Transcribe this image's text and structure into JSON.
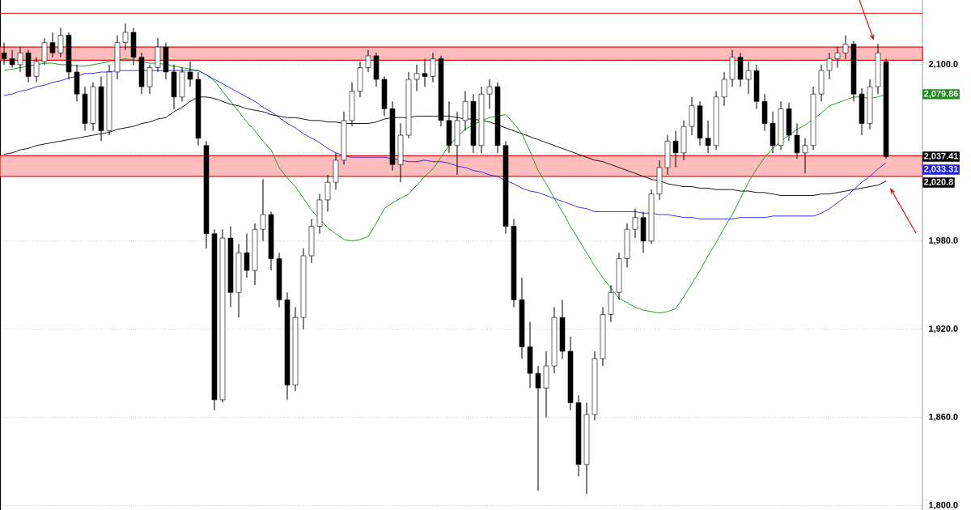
{
  "chart_data": {
    "type": "candlestick",
    "categories": [
      null,
      null,
      null,
      null,
      null,
      null,
      null,
      null,
      null,
      null,
      null,
      null,
      null,
      null,
      null,
      null,
      null,
      null,
      null,
      null,
      null,
      null,
      null,
      null,
      null,
      null,
      null,
      null,
      null,
      null,
      null,
      null,
      null,
      null,
      null,
      null,
      null,
      null,
      null,
      null,
      null,
      null,
      null,
      null,
      null,
      null,
      null,
      null,
      null,
      null,
      null,
      null,
      null,
      null,
      null,
      null,
      null,
      null,
      null,
      null,
      null,
      null,
      null,
      null,
      null,
      null,
      null,
      null,
      null,
      null,
      null,
      null,
      null,
      null,
      null,
      null,
      null,
      null,
      null,
      null,
      null,
      null,
      null,
      null,
      null,
      null,
      null,
      null,
      null,
      null,
      null,
      null,
      null,
      null,
      null,
      null,
      null,
      null,
      null,
      null,
      null,
      null,
      null,
      null,
      null,
      null,
      null,
      null,
      null,
      null
    ],
    "ohlc": [
      [
        2108,
        2115,
        2100,
        2104
      ],
      [
        2104,
        2110,
        2098,
        2100
      ],
      [
        2100,
        2112,
        2095,
        2108
      ],
      [
        2108,
        2110,
        2088,
        2092
      ],
      [
        2092,
        2105,
        2088,
        2102
      ],
      [
        2102,
        2118,
        2100,
        2115
      ],
      [
        2115,
        2122,
        2105,
        2108
      ],
      [
        2108,
        2125,
        2105,
        2120
      ],
      [
        2120,
        2122,
        2090,
        2095
      ],
      [
        2095,
        2100,
        2075,
        2080
      ],
      [
        2080,
        2085,
        2055,
        2060
      ],
      [
        2060,
        2088,
        2055,
        2085
      ],
      [
        2085,
        2092,
        2048,
        2055
      ],
      [
        2055,
        2100,
        2052,
        2095
      ],
      [
        2095,
        2120,
        2090,
        2115
      ],
      [
        2115,
        2128,
        2110,
        2122
      ],
      [
        2122,
        2125,
        2100,
        2105
      ],
      [
        2105,
        2108,
        2080,
        2085
      ],
      [
        2085,
        2100,
        2080,
        2098
      ],
      [
        2098,
        2118,
        2095,
        2112
      ],
      [
        2112,
        2115,
        2090,
        2095
      ],
      [
        2095,
        2100,
        2070,
        2078
      ],
      [
        2078,
        2098,
        2075,
        2095
      ],
      [
        2095,
        2102,
        2085,
        2090
      ],
      [
        2090,
        2095,
        2045,
        2050
      ],
      [
        2045,
        2048,
        1975,
        1985
      ],
      [
        1985,
        1988,
        1865,
        1872
      ],
      [
        1872,
        1988,
        1870,
        1982
      ],
      [
        1982,
        1990,
        1935,
        1945
      ],
      [
        1945,
        1978,
        1928,
        1972
      ],
      [
        1972,
        1985,
        1955,
        1960
      ],
      [
        1960,
        1992,
        1950,
        1988
      ],
      [
        1988,
        2022,
        1980,
        1998
      ],
      [
        1998,
        2000,
        1960,
        1968
      ],
      [
        1968,
        1972,
        1935,
        1940
      ],
      [
        1940,
        1945,
        1872,
        1882
      ],
      [
        1882,
        1935,
        1878,
        1928
      ],
      [
        1928,
        1975,
        1920,
        1970
      ],
      [
        1970,
        1995,
        1965,
        1990
      ],
      [
        1990,
        2012,
        1985,
        2008
      ],
      [
        2008,
        2025,
        2000,
        2020
      ],
      [
        2020,
        2040,
        2015,
        2035
      ],
      [
        2035,
        2068,
        2032,
        2062
      ],
      [
        2062,
        2088,
        2058,
        2082
      ],
      [
        2082,
        2102,
        2078,
        2098
      ],
      [
        2098,
        2110,
        2095,
        2106
      ],
      [
        2106,
        2108,
        2085,
        2090
      ],
      [
        2090,
        2092,
        2065,
        2070
      ],
      [
        2070,
        2075,
        2028,
        2032
      ],
      [
        2032,
        2060,
        2020,
        2052
      ],
      [
        2052,
        2095,
        2050,
        2090
      ],
      [
        2090,
        2100,
        2082,
        2094
      ],
      [
        2094,
        2104,
        2085,
        2092
      ],
      [
        2092,
        2108,
        2088,
        2104
      ],
      [
        2104,
        2106,
        2058,
        2062
      ],
      [
        2062,
        2075,
        2040,
        2045
      ],
      [
        2045,
        2068,
        2025,
        2062
      ],
      [
        2062,
        2082,
        2055,
        2075
      ],
      [
        2075,
        2080,
        2040,
        2045
      ],
      [
        2045,
        2085,
        2040,
        2080
      ],
      [
        2080,
        2090,
        2070,
        2085
      ],
      [
        2085,
        2088,
        2040,
        2045
      ],
      [
        2045,
        2048,
        1985,
        1990
      ],
      [
        1990,
        1995,
        1935,
        1940
      ],
      [
        1940,
        1955,
        1900,
        1908
      ],
      [
        1908,
        1925,
        1880,
        1890
      ],
      [
        1890,
        1895,
        1810,
        1880
      ],
      [
        1880,
        1905,
        1860,
        1895
      ],
      [
        1895,
        1935,
        1890,
        1928
      ],
      [
        1928,
        1940,
        1900,
        1905
      ],
      [
        1905,
        1915,
        1865,
        1870
      ],
      [
        1870,
        1875,
        1820,
        1828
      ],
      [
        1828,
        1870,
        1808,
        1862
      ],
      [
        1862,
        1905,
        1858,
        1900
      ],
      [
        1900,
        1935,
        1895,
        1930
      ],
      [
        1930,
        1950,
        1925,
        1945
      ],
      [
        1945,
        1972,
        1940,
        1968
      ],
      [
        1968,
        1992,
        1962,
        1988
      ],
      [
        1988,
        2002,
        1982,
        1996
      ],
      [
        1996,
        2000,
        1972,
        1980
      ],
      [
        1980,
        2015,
        1978,
        2012
      ],
      [
        2012,
        2035,
        2008,
        2030
      ],
      [
        2030,
        2052,
        2025,
        2048
      ],
      [
        2048,
        2055,
        2030,
        2040
      ],
      [
        2040,
        2062,
        2035,
        2058
      ],
      [
        2058,
        2078,
        2052,
        2072
      ],
      [
        2072,
        2075,
        2045,
        2050
      ],
      [
        2050,
        2062,
        2040,
        2045
      ],
      [
        2045,
        2082,
        2042,
        2078
      ],
      [
        2078,
        2095,
        2072,
        2090
      ],
      [
        2090,
        2110,
        2085,
        2105
      ],
      [
        2105,
        2108,
        2085,
        2090
      ],
      [
        2090,
        2102,
        2080,
        2096
      ],
      [
        2096,
        2100,
        2070,
        2075
      ],
      [
        2075,
        2080,
        2055,
        2060
      ],
      [
        2060,
        2068,
        2040,
        2045
      ],
      [
        2045,
        2075,
        2042,
        2070
      ],
      [
        2070,
        2074,
        2048,
        2052
      ],
      [
        2052,
        2060,
        2036,
        2040
      ],
      [
        2040,
        2050,
        2026,
        2045
      ],
      [
        2045,
        2085,
        2042,
        2080
      ],
      [
        2080,
        2100,
        2075,
        2096
      ],
      [
        2096,
        2108,
        2090,
        2104
      ],
      [
        2104,
        2112,
        2098,
        2108
      ],
      [
        2108,
        2120,
        2104,
        2114
      ],
      [
        2114,
        2116,
        2075,
        2080
      ],
      [
        2080,
        2084,
        2052,
        2060
      ],
      [
        2060,
        2090,
        2056,
        2085
      ],
      [
        2085,
        2114,
        2080,
        2108
      ],
      [
        2102,
        2104,
        2036,
        2037.41
      ]
    ],
    "series": [
      {
        "type": "line",
        "color": "#1a8c1a",
        "values": [
          2096,
          2097,
          2098,
          2099,
          2100,
          2101,
          2101,
          2100,
          2100,
          2099,
          2099,
          2100,
          2101,
          2102,
          2103,
          2104,
          2103,
          2102,
          2101,
          2101,
          2100,
          2099,
          2098,
          2097,
          2096,
          2093,
          2089,
          2082,
          2075,
          2068,
          2061,
          2055,
          2048,
          2042,
          2030,
          2023,
          2017,
          2009,
          2001,
          null,
          1989,
          1985,
          1981,
          1980,
          1981,
          1983,
          1992,
          2002,
          2006,
          2009,
          2012,
          2018,
          2024,
          2029,
          2037,
          2045,
          2051,
          2056,
          2059,
          2062,
          2064,
          2065,
          2066,
          2060,
          2053,
          2041,
          2028,
          2019,
          2009,
          2000,
          1990,
          1981,
          1972,
          1963,
          1955,
          1948,
          1941,
          1938,
          1935,
          1933,
          1932,
          1931,
          1932,
          1934,
          1942,
          1951,
          1960,
          1970,
          1979,
          1989,
          1998,
          2009,
          2020,
          2029,
          2037,
          2043,
          2048,
          2052,
          2056,
          2059,
          null,
          2067,
          2072,
          2074,
          2076,
          2078,
          2078,
          2077,
          2078,
          2079.86
        ]
      },
      {
        "type": "line",
        "color": "#2020e0",
        "values": [
          2079,
          2080,
          2082,
          2083,
          2085,
          2086,
          2088,
          2089,
          2091,
          2092,
          2094,
          2094,
          2095,
          2095,
          2096,
          2096,
          2096,
          2096,
          2096,
          2096,
          2096,
          2096,
          2096,
          2096,
          2096,
          2093,
          2090,
          2087,
          2084,
          2081,
          2078,
          2075,
          2071,
          2068,
          2064,
          2060,
          2057,
          2053,
          2050,
          2047,
          2043,
          2040,
          2038,
          2037,
          2037,
          2037,
          2037,
          2037,
          null,
          2035,
          2034,
          2034,
          2035,
          2034,
          2034,
          2033,
          2031,
          2030,
          2028,
          2027,
          2025,
          2024,
          2021,
          2019,
          2016,
          2014,
          2013,
          2011,
          2009,
          2007,
          2005,
          2003,
          2002,
          2000,
          2000,
          2000,
          2000,
          2000,
          2000,
          1999,
          1999,
          1998,
          1998,
          1997,
          1996,
          1996,
          1995,
          1995,
          1995,
          1995,
          1995,
          1996,
          1996,
          1996,
          1996,
          1997,
          1997,
          1997,
          1997,
          1997,
          1997,
          1999,
          2002,
          2006,
          2010,
          2015,
          2020,
          2024,
          2029,
          2033.31
        ]
      },
      {
        "type": "line",
        "color": "#000000",
        "values": [
          2039,
          2040,
          2042,
          2043,
          2045,
          2046,
          2047,
          2048,
          2049,
          2050,
          2051,
          2052,
          2053,
          2054,
          2056,
          2057,
          2058,
          2060,
          2061,
          2063,
          2064,
          2068,
          2071,
          2075,
          2078,
          2078,
          2077,
          2075,
          2073,
          2072,
          2070,
          2069,
          2068,
          2066,
          2065,
          2064,
          2064,
          2063,
          2062,
          2062,
          2061,
          2061,
          2060,
          2060,
          2060,
          2060,
          2061,
          2063,
          2064,
          2064,
          2064,
          2065,
          2065,
          2065,
          2065,
          2065,
          2064,
          2063,
          2063,
          2062,
          2061,
          2059,
          2057,
          2055,
          2053,
          2051,
          2049,
          2047,
          2045,
          2043,
          2041,
          2039,
          2037,
          2035,
          2034,
          2032,
          2030,
          2028,
          2026,
          2024,
          2022,
          2021,
          2019,
          2018,
          2017,
          2017,
          2016,
          2016,
          2015,
          2015,
          2015,
          2014,
          2014,
          2013,
          2013,
          2012,
          2011,
          2011,
          2011,
          2011,
          2011,
          2012,
          2012,
          2013,
          2014,
          2015,
          2016,
          2017,
          2018,
          2020.8
        ]
      }
    ],
    "ylim": [
      1797,
      2144
    ],
    "yticks": [
      {
        "value": 1800,
        "label": "1,800.0"
      },
      {
        "value": 1860,
        "label": "1,860.0"
      },
      {
        "value": 1920,
        "label": "1,920.0"
      },
      {
        "value": 1980,
        "label": "1,980.0"
      },
      {
        "value": 2040,
        "label": null
      },
      {
        "value": 2100,
        "label": "2,100.0"
      }
    ],
    "grid": "y",
    "tick_labels": "y",
    "ref_lines": [
      {
        "axis": "y",
        "value": 2135,
        "color": "#e01010"
      }
    ],
    "bands": [
      {
        "axis": "y",
        "from": 2103,
        "to": 2112,
        "color": "#ffbcbc"
      },
      {
        "axis": "y",
        "from": 2024,
        "to": 2038,
        "color": "#ffbcbc"
      }
    ],
    "annotations": [
      "2,079.86",
      "2,037.41",
      "2,033.31",
      "2,020.8"
    ]
  }
}
